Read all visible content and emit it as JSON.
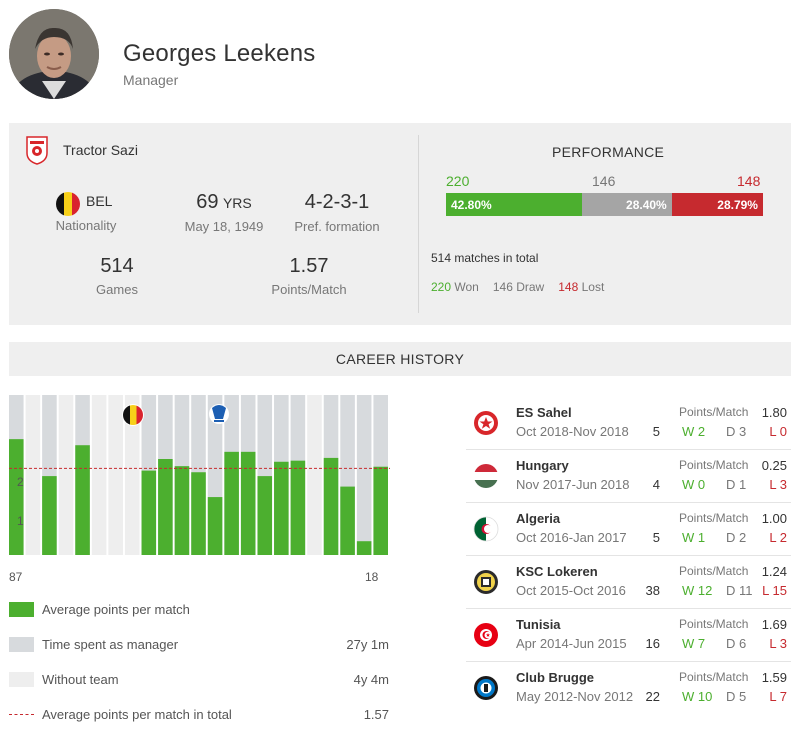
{
  "profile": {
    "name": "Georges Leekens",
    "role": "Manager"
  },
  "info": {
    "club": "Tractor Sazi",
    "nationality_code": "BEL",
    "nationality_label": "Nationality",
    "age": "69",
    "age_unit": "YRS",
    "birth_date": "May 18, 1949",
    "formation": "4-2-3-1",
    "formation_label": "Pref. formation",
    "games": "514",
    "games_label": "Games",
    "points_per_match": "1.57",
    "points_per_match_label": "Points/Match"
  },
  "performance": {
    "title": "PERFORMANCE",
    "won": "220",
    "draw": "146",
    "lost": "148",
    "won_pct": 42.8,
    "draw_pct": 28.4,
    "lost_pct": 28.79,
    "won_pct_label": "42.80%",
    "draw_pct_label": "28.40%",
    "lost_pct_label": "28.79%",
    "matches_total": "514 matches in total",
    "won_label": "Won",
    "draw_label": "Draw",
    "lost_label": "Lost",
    "colors": {
      "won": "#4caf2f",
      "draw": "#a5a5a5",
      "lost": "#c62a2f"
    }
  },
  "career_header": "CAREER HISTORY",
  "chart_data": {
    "type": "bar",
    "x_start_label": "87",
    "x_end_label": "18",
    "y_ticks": [
      "2",
      "1"
    ],
    "average_line": 1.57,
    "ylim": [
      0,
      2.9
    ],
    "values": [
      2.1,
      0,
      1.43,
      0,
      1.99,
      0,
      0,
      0,
      1.53,
      1.74,
      1.61,
      1.5,
      1.05,
      1.87,
      1.87,
      1.43,
      1.69,
      1.71,
      0,
      1.76,
      1.24,
      0.25,
      1.6
    ]
  },
  "legend": {
    "avg_points": "Average points per match",
    "time_manager": "Time spent as manager",
    "time_manager_value": "27y 1m",
    "without_team": "Without team",
    "without_team_value": "4y 4m",
    "avg_total": "Average points per match in total",
    "avg_total_value": "1.57"
  },
  "career": [
    {
      "team": "ES Sahel",
      "period": "Oct 2018-Nov 2018",
      "games": "5",
      "ppm_label": "Points/Match",
      "ppm": "1.80",
      "w": "W 2",
      "d": "D 3",
      "l": "L 0",
      "icon": "es-sahel-crest-icon"
    },
    {
      "team": "Hungary",
      "period": "Nov 2017-Jun 2018",
      "games": "4",
      "ppm_label": "Points/Match",
      "ppm": "0.25",
      "w": "W 0",
      "d": "D 1",
      "l": "L 3",
      "icon": "hungary-flag-icon"
    },
    {
      "team": "Algeria",
      "period": "Oct 2016-Jan 2017",
      "games": "5",
      "ppm_label": "Points/Match",
      "ppm": "1.00",
      "w": "W 1",
      "d": "D 2",
      "l": "L 2",
      "icon": "algeria-flag-icon"
    },
    {
      "team": "KSC Lokeren",
      "period": "Oct 2015-Oct 2016",
      "games": "38",
      "ppm_label": "Points/Match",
      "ppm": "1.24",
      "w": "W 12",
      "d": "D 11",
      "l": "L 15",
      "icon": "lokeren-crest-icon"
    },
    {
      "team": "Tunisia",
      "period": "Apr 2014-Jun 2015",
      "games": "16",
      "ppm_label": "Points/Match",
      "ppm": "1.69",
      "w": "W 7",
      "d": "D 6",
      "l": "L 3",
      "icon": "tunisia-flag-icon"
    },
    {
      "team": "Club Brugge",
      "period": "May 2012-Nov 2012",
      "games": "22",
      "ppm_label": "Points/Match",
      "ppm": "1.59",
      "w": "W 10",
      "d": "D 5",
      "l": "L 7",
      "icon": "club-brugge-crest-icon"
    }
  ]
}
